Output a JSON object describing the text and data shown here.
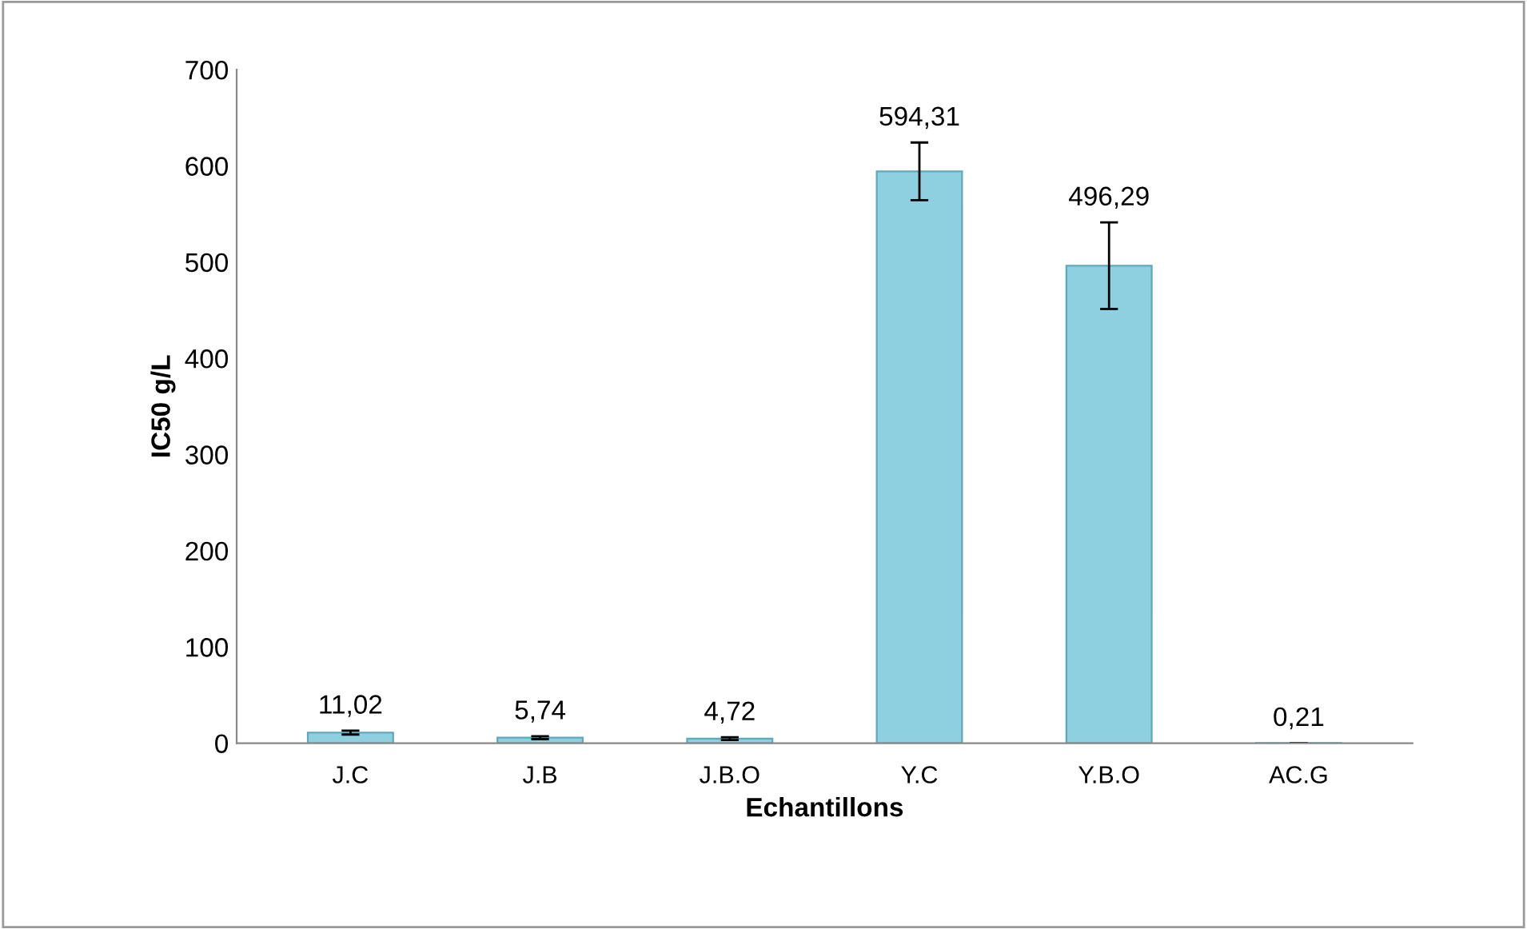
{
  "chart_data": {
    "type": "bar",
    "xlabel": "Echantillons",
    "ylabel": "IC50 g/L",
    "categories": [
      "J.C",
      "J.B",
      "J.B.O",
      "Y.C",
      "Y.B.O",
      "AC.G"
    ],
    "values": [
      11.02,
      5.74,
      4.72,
      594.31,
      496.29,
      0.21
    ],
    "errors": [
      2,
      1.5,
      1.5,
      30,
      45,
      null
    ],
    "value_labels": [
      "11,02",
      "5,74",
      "4,72",
      "594,31",
      "496,29",
      "0,21"
    ],
    "color": "#8ecfe0",
    "ylim": [
      0,
      700
    ],
    "yticks": [
      0,
      100,
      200,
      300,
      400,
      500,
      600,
      700
    ],
    "grid": false
  }
}
